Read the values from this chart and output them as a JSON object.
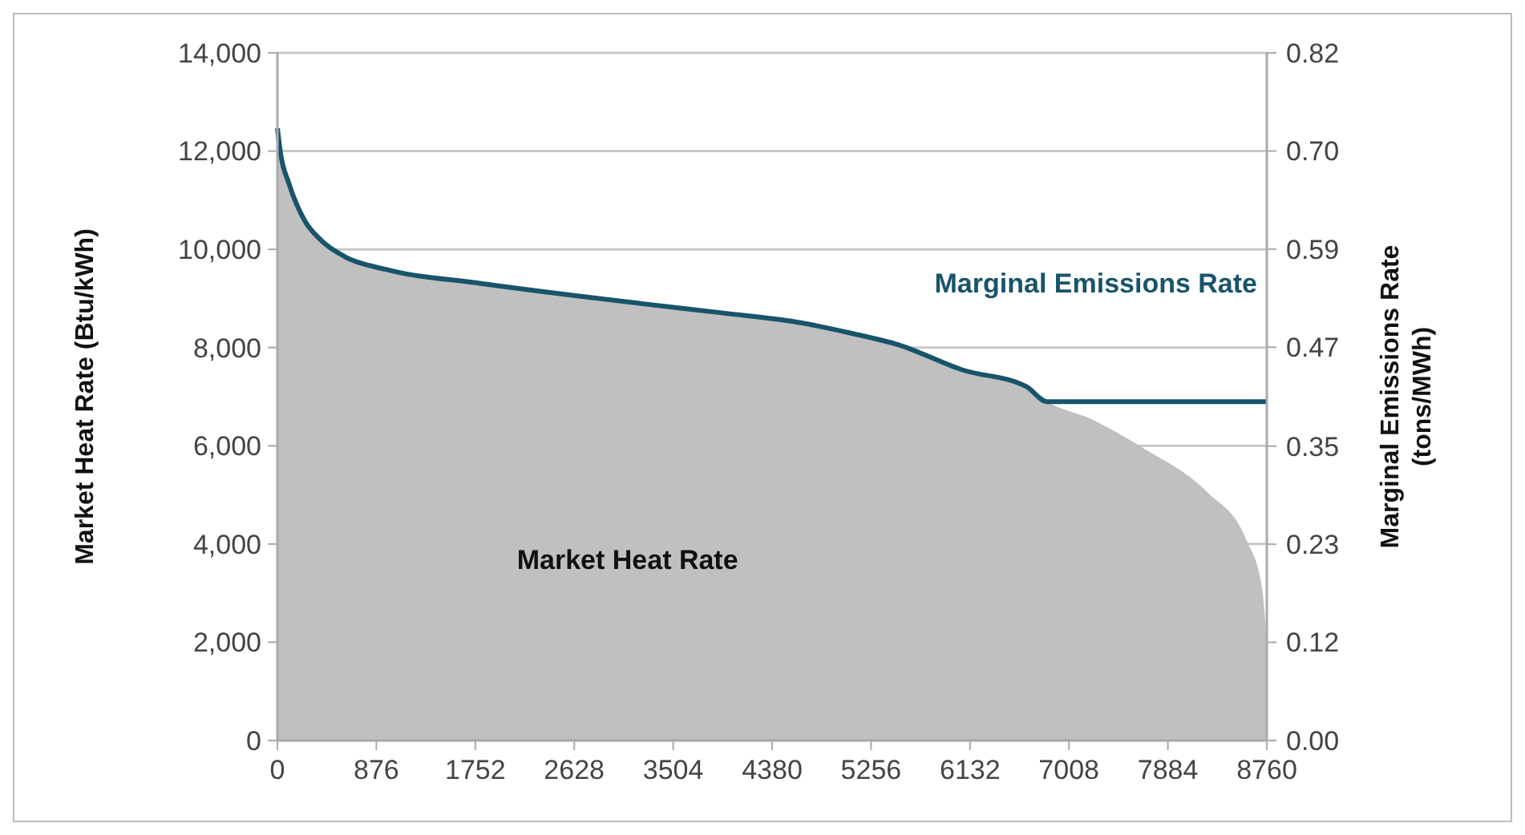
{
  "chart_data": {
    "type": "area",
    "ylabel": "Market Heat Rate (Btu/kWh)",
    "y2label": "Marginal Emissions Rate (tons/MWh)",
    "xlim": [
      0,
      8760
    ],
    "xticks": [
      0,
      876,
      1752,
      2628,
      3504,
      4380,
      5256,
      6132,
      7008,
      7884,
      8760
    ],
    "ylim": [
      0,
      14000
    ],
    "yticks": [
      0,
      {
        "value": 2000,
        "label": "2,000"
      },
      {
        "value": 4000,
        "label": "4,000"
      },
      {
        "value": 6000,
        "label": "6,000"
      },
      {
        "value": 8000,
        "label": "8,000"
      },
      {
        "value": 10000,
        "label": "10,000"
      },
      {
        "value": 12000,
        "label": "12,000"
      },
      {
        "value": 14000,
        "label": "14,000"
      }
    ],
    "y2lim": [
      0,
      0.82
    ],
    "y2ticks": [
      {
        "value": 0,
        "label": "0.00"
      },
      {
        "value": 0.117,
        "label": "0.12"
      },
      {
        "value": 0.234,
        "label": "0.23"
      },
      {
        "value": 0.351,
        "label": "0.35"
      },
      {
        "value": 0.469,
        "label": "0.47"
      },
      {
        "value": 0.586,
        "label": "0.59"
      },
      {
        "value": 0.703,
        "label": "0.70"
      },
      0.82
    ],
    "grid": "y",
    "series": [
      {
        "name": "Market Heat Rate",
        "color": "#c0c0c0",
        "x": [
          0,
          28,
          100,
          241,
          383,
          596,
          951,
          1803,
          3223,
          3933,
          4643,
          5069,
          5495,
          6063,
          6631,
          6815,
          7199,
          7667,
          8235,
          8576,
          8718,
          8760
        ],
        "values": [
          12450,
          12000,
          11350,
          10600,
          10200,
          9850,
          9600,
          9300,
          8900,
          8700,
          8500,
          8300,
          8050,
          7550,
          7200,
          6900,
          6550,
          5950,
          5050,
          4100,
          3100,
          2000
        ]
      },
      {
        "name": "Marginal Emissions Rate",
        "type": "line",
        "axis": "y2",
        "color": "#18546a",
        "x": [
          0,
          28,
          100,
          241,
          383,
          596,
          951,
          1803,
          3223,
          3933,
          4643,
          5069,
          5495,
          6063,
          6631,
          6815,
          8760
        ],
        "values": [
          0.73,
          0.7,
          0.665,
          0.62,
          0.597,
          0.577,
          0.562,
          0.545,
          0.521,
          0.51,
          0.498,
          0.486,
          0.472,
          0.442,
          0.422,
          0.404,
          0.404
        ]
      }
    ]
  }
}
